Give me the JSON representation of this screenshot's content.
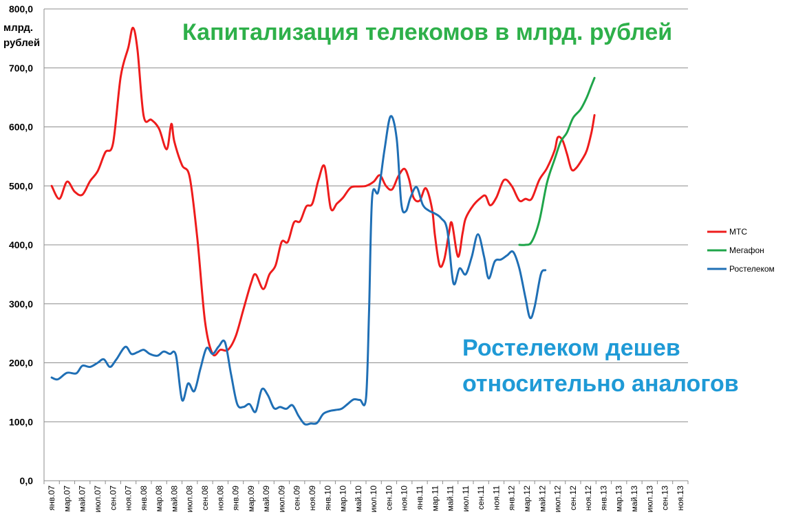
{
  "chart_data": {
    "type": "line",
    "title": "Капитализация телекомов в млрд. рублей",
    "ylabel": "млрд. рублей",
    "ylabel_lines": [
      "млрд.",
      "рублей"
    ],
    "ylim": [
      0,
      800
    ],
    "yticks": [
      "0,0",
      "100,0",
      "200,0",
      "300,0",
      "400,0",
      "500,0",
      "600,0",
      "700,0",
      "800,0"
    ],
    "grid": true,
    "legend_position": "right",
    "categories": [
      "янв.07",
      "мар.07",
      "май.07",
      "июл.07",
      "сен.07",
      "ноя.07",
      "янв.08",
      "мар.08",
      "май.08",
      "июл.08",
      "сен.08",
      "ноя.08",
      "янв.09",
      "мар.09",
      "май.09",
      "июл.09",
      "сен.09",
      "ноя.09",
      "янв.10",
      "мар.10",
      "май.10",
      "июл.10",
      "сен.10",
      "ноя.10",
      "янв.11",
      "мар.11",
      "май.11",
      "июл.11",
      "сен.11",
      "ноя.11",
      "янв.12",
      "мар.12",
      "май.12",
      "июл.12",
      "сен.12",
      "ноя.12",
      "янв.13",
      "мар.13",
      "май.13",
      "июл.13",
      "сен.13",
      "ноя.13"
    ],
    "series": [
      {
        "name": "МТС",
        "color": "#ee1c1c",
        "points": [
          [
            0,
            500
          ],
          [
            0.5,
            478
          ],
          [
            1,
            507
          ],
          [
            1.5,
            490
          ],
          [
            2,
            485
          ],
          [
            2.5,
            508
          ],
          [
            3,
            525
          ],
          [
            3.5,
            557
          ],
          [
            4,
            572
          ],
          [
            4.5,
            685
          ],
          [
            5,
            735
          ],
          [
            5.3,
            768
          ],
          [
            5.6,
            730
          ],
          [
            6,
            618
          ],
          [
            6.5,
            612
          ],
          [
            7,
            597
          ],
          [
            7.5,
            562
          ],
          [
            7.8,
            605
          ],
          [
            8,
            575
          ],
          [
            8.5,
            535
          ],
          [
            9,
            515
          ],
          [
            9.5,
            410
          ],
          [
            10,
            270
          ],
          [
            10.5,
            215
          ],
          [
            11,
            222
          ],
          [
            11.5,
            222
          ],
          [
            12,
            245
          ],
          [
            12.5,
            290
          ],
          [
            13,
            335
          ],
          [
            13.3,
            350
          ],
          [
            13.8,
            325
          ],
          [
            14.2,
            350
          ],
          [
            14.6,
            365
          ],
          [
            15,
            405
          ],
          [
            15.4,
            405
          ],
          [
            15.8,
            438
          ],
          [
            16.2,
            440
          ],
          [
            16.6,
            465
          ],
          [
            17,
            470
          ],
          [
            17.4,
            510
          ],
          [
            17.8,
            533
          ],
          [
            18.2,
            462
          ],
          [
            18.6,
            470
          ],
          [
            19,
            480
          ],
          [
            19.5,
            497
          ],
          [
            20,
            499
          ],
          [
            20.5,
            500
          ],
          [
            21,
            507
          ],
          [
            21.4,
            518
          ],
          [
            21.8,
            500
          ],
          [
            22.2,
            494
          ],
          [
            22.6,
            516
          ],
          [
            23,
            529
          ],
          [
            23.3,
            512
          ],
          [
            23.6,
            480
          ],
          [
            24,
            475
          ],
          [
            24.4,
            496
          ],
          [
            24.8,
            462
          ],
          [
            25,
            415
          ],
          [
            25.3,
            365
          ],
          [
            25.6,
            375
          ],
          [
            25.9,
            418
          ],
          [
            26.1,
            437
          ],
          [
            26.5,
            380
          ],
          [
            26.8,
            420
          ],
          [
            27,
            445
          ],
          [
            27.5,
            467
          ],
          [
            28,
            480
          ],
          [
            28.3,
            483
          ],
          [
            28.6,
            467
          ],
          [
            29,
            480
          ],
          [
            29.5,
            510
          ],
          [
            30,
            500
          ],
          [
            30.5,
            475
          ],
          [
            30.9,
            478
          ],
          [
            31.3,
            478
          ],
          [
            31.8,
            510
          ],
          [
            32.3,
            530
          ],
          [
            32.8,
            560
          ],
          [
            33,
            582
          ],
          [
            33.3,
            578
          ],
          [
            33.6,
            555
          ],
          [
            33.9,
            528
          ],
          [
            34.2,
            530
          ],
          [
            34.6,
            545
          ],
          [
            34.9,
            560
          ],
          [
            35.2,
            590
          ],
          [
            35.4,
            620
          ]
        ]
      },
      {
        "name": "Мегафон",
        "color": "#1fa54a",
        "points": [
          [
            30.5,
            400
          ],
          [
            30.9,
            400
          ],
          [
            31.3,
            405
          ],
          [
            31.8,
            440
          ],
          [
            32.3,
            505
          ],
          [
            32.8,
            545
          ],
          [
            33.2,
            575
          ],
          [
            33.6,
            590
          ],
          [
            34,
            615
          ],
          [
            34.5,
            630
          ],
          [
            34.9,
            650
          ],
          [
            35.2,
            670
          ],
          [
            35.4,
            683
          ]
        ]
      },
      {
        "name": "Ростелеком",
        "color": "#1f6fb5",
        "points": [
          [
            0,
            175
          ],
          [
            0.4,
            172
          ],
          [
            1,
            183
          ],
          [
            1.6,
            182
          ],
          [
            2,
            195
          ],
          [
            2.5,
            193
          ],
          [
            3,
            200
          ],
          [
            3.4,
            206
          ],
          [
            3.8,
            193
          ],
          [
            4.2,
            205
          ],
          [
            4.8,
            227
          ],
          [
            5.2,
            215
          ],
          [
            5.6,
            218
          ],
          [
            6,
            222
          ],
          [
            6.4,
            215
          ],
          [
            6.9,
            212
          ],
          [
            7.3,
            219
          ],
          [
            7.7,
            215
          ],
          [
            8.1,
            213
          ],
          [
            8.5,
            137
          ],
          [
            8.9,
            165
          ],
          [
            9.3,
            152
          ],
          [
            9.7,
            190
          ],
          [
            10.1,
            225
          ],
          [
            10.5,
            215
          ],
          [
            10.9,
            228
          ],
          [
            11.3,
            235
          ],
          [
            11.7,
            180
          ],
          [
            12.1,
            130
          ],
          [
            12.5,
            125
          ],
          [
            12.9,
            130
          ],
          [
            13.3,
            117
          ],
          [
            13.7,
            155
          ],
          [
            14.1,
            145
          ],
          [
            14.5,
            123
          ],
          [
            14.9,
            125
          ],
          [
            15.3,
            122
          ],
          [
            15.7,
            128
          ],
          [
            16.1,
            110
          ],
          [
            16.5,
            96
          ],
          [
            16.9,
            97
          ],
          [
            17.3,
            98
          ],
          [
            17.7,
            113
          ],
          [
            18.1,
            118
          ],
          [
            18.5,
            120
          ],
          [
            18.9,
            122
          ],
          [
            19.3,
            130
          ],
          [
            19.7,
            138
          ],
          [
            20.1,
            137
          ],
          [
            20.5,
            140
          ],
          [
            20.7,
            290
          ],
          [
            20.9,
            480
          ],
          [
            21.3,
            490
          ],
          [
            21.7,
            560
          ],
          [
            22.1,
            618
          ],
          [
            22.5,
            580
          ],
          [
            22.8,
            470
          ],
          [
            23.1,
            457
          ],
          [
            23.4,
            480
          ],
          [
            23.8,
            498
          ],
          [
            24.2,
            468
          ],
          [
            24.6,
            458
          ],
          [
            25,
            453
          ],
          [
            25.4,
            445
          ],
          [
            25.8,
            425
          ],
          [
            26.2,
            335
          ],
          [
            26.6,
            360
          ],
          [
            27,
            350
          ],
          [
            27.4,
            380
          ],
          [
            27.8,
            418
          ],
          [
            28.2,
            380
          ],
          [
            28.5,
            343
          ],
          [
            28.9,
            372
          ],
          [
            29.3,
            375
          ],
          [
            29.7,
            382
          ],
          [
            30.1,
            388
          ],
          [
            30.5,
            360
          ],
          [
            30.9,
            310
          ],
          [
            31.2,
            276
          ],
          [
            31.5,
            295
          ],
          [
            31.9,
            350
          ],
          [
            32.2,
            357
          ]
        ]
      }
    ],
    "annotation": {
      "lines": [
        "Ростелеком дешев",
        "относительно аналогов"
      ],
      "color": "#1f9ad6"
    },
    "title_color": "#2eb04a"
  }
}
